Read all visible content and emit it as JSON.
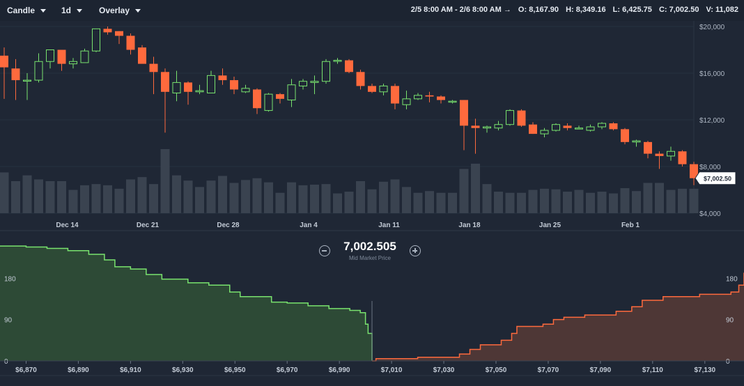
{
  "toolbar": {
    "chart_type": "Candle",
    "interval": "1d",
    "overlay": "Overlay",
    "range": "2/5 8:00 AM - 2/6 8:00 AM →",
    "open": "O: 8,167.90",
    "high": "H: 8,349.16",
    "low": "L: 6,425.75",
    "close": "C: 7,002.50",
    "volume": "V: 11,082"
  },
  "depth": {
    "mid_value": "7,002.505",
    "mid_label": "Mid Market Price",
    "zoom_out_icon": "minus-circle-icon",
    "zoom_in_icon": "plus-circle-icon"
  },
  "colors": {
    "up": "#79e36e",
    "down": "#ff6a3d",
    "volume": "#3a4350",
    "bid_fill": "#2d4a36",
    "ask_fill": "#4e3736"
  },
  "chart_data": [
    {
      "type": "candlestick",
      "y_axis": {
        "min": 4000,
        "max": 20000,
        "ticks": [
          4000,
          8000,
          12000,
          16000,
          20000
        ],
        "labels": [
          "$4,000",
          "$8,000",
          "$12,000",
          "$16,000",
          "$20,000"
        ]
      },
      "x_labels": [
        {
          "label": "Dec 14",
          "index": 5
        },
        {
          "label": "Dec 21",
          "index": 12
        },
        {
          "label": "Dec 28",
          "index": 19
        },
        {
          "label": "Jan 4",
          "index": 26
        },
        {
          "label": "Jan 11",
          "index": 33
        },
        {
          "label": "Jan 18",
          "index": 40
        },
        {
          "label": "Jan 25",
          "index": 47
        },
        {
          "label": "Feb 1",
          "index": 54
        }
      ],
      "last_price_label": "$7,002.50",
      "candles": [
        {
          "o": 17500,
          "h": 18200,
          "l": 13800,
          "c": 16500,
          "v": 7
        },
        {
          "o": 16400,
          "h": 17200,
          "l": 13700,
          "c": 15400,
          "v": 5.5
        },
        {
          "o": 15400,
          "h": 16000,
          "l": 13700,
          "c": 15400,
          "v": 6.5
        },
        {
          "o": 15400,
          "h": 17700,
          "l": 15200,
          "c": 17000,
          "v": 5.8
        },
        {
          "o": 17000,
          "h": 18000,
          "l": 16400,
          "c": 18000,
          "v": 5.5
        },
        {
          "o": 18000,
          "h": 18000,
          "l": 16200,
          "c": 16800,
          "v": 5.5
        },
        {
          "o": 16800,
          "h": 17300,
          "l": 16400,
          "c": 17000,
          "v": 4
        },
        {
          "o": 16900,
          "h": 18100,
          "l": 16900,
          "c": 17900,
          "v": 4.8
        },
        {
          "o": 17900,
          "h": 19800,
          "l": 17800,
          "c": 19800,
          "v": 5
        },
        {
          "o": 19800,
          "h": 20000,
          "l": 19300,
          "c": 19500,
          "v": 4.8
        },
        {
          "o": 19600,
          "h": 19600,
          "l": 18500,
          "c": 19200,
          "v": 4.2
        },
        {
          "o": 19200,
          "h": 19400,
          "l": 17600,
          "c": 18000,
          "v": 5.8
        },
        {
          "o": 18200,
          "h": 18400,
          "l": 16900,
          "c": 16800,
          "v": 6.2
        },
        {
          "o": 16800,
          "h": 17400,
          "l": 14200,
          "c": 16100,
          "v": 5
        },
        {
          "o": 16100,
          "h": 16400,
          "l": 10900,
          "c": 14400,
          "v": 11
        },
        {
          "o": 14300,
          "h": 16200,
          "l": 13600,
          "c": 15200,
          "v": 6.5
        },
        {
          "o": 15200,
          "h": 15300,
          "l": 13300,
          "c": 14400,
          "v": 5.6
        },
        {
          "o": 14400,
          "h": 15000,
          "l": 14200,
          "c": 14500,
          "v": 4.5
        },
        {
          "o": 14300,
          "h": 16200,
          "l": 14300,
          "c": 15800,
          "v": 5.6
        },
        {
          "o": 15800,
          "h": 16400,
          "l": 15000,
          "c": 15400,
          "v": 6.4
        },
        {
          "o": 15400,
          "h": 15700,
          "l": 14200,
          "c": 14600,
          "v": 5.2
        },
        {
          "o": 14400,
          "h": 15000,
          "l": 14300,
          "c": 14700,
          "v": 5.7
        },
        {
          "o": 14600,
          "h": 14700,
          "l": 12500,
          "c": 13000,
          "v": 6
        },
        {
          "o": 12800,
          "h": 14300,
          "l": 12700,
          "c": 14200,
          "v": 5.3
        },
        {
          "o": 14200,
          "h": 14300,
          "l": 13400,
          "c": 13800,
          "v": 3.5
        },
        {
          "o": 13700,
          "h": 15500,
          "l": 13100,
          "c": 15000,
          "v": 5.3
        },
        {
          "o": 14900,
          "h": 15500,
          "l": 14600,
          "c": 15300,
          "v": 4.8
        },
        {
          "o": 15200,
          "h": 15800,
          "l": 14200,
          "c": 15300,
          "v": 4.9
        },
        {
          "o": 15300,
          "h": 17200,
          "l": 15100,
          "c": 17000,
          "v": 5
        },
        {
          "o": 17100,
          "h": 17300,
          "l": 16800,
          "c": 17100,
          "v": 3.4
        },
        {
          "o": 17100,
          "h": 17200,
          "l": 16000,
          "c": 16100,
          "v": 3.7
        },
        {
          "o": 16100,
          "h": 16300,
          "l": 14600,
          "c": 14900,
          "v": 5.5
        },
        {
          "o": 14900,
          "h": 15100,
          "l": 14300,
          "c": 14400,
          "v": 4.1
        },
        {
          "o": 14400,
          "h": 15100,
          "l": 14100,
          "c": 14900,
          "v": 5.4
        },
        {
          "o": 14900,
          "h": 15100,
          "l": 12900,
          "c": 13400,
          "v": 5.8
        },
        {
          "o": 13300,
          "h": 14500,
          "l": 12900,
          "c": 13800,
          "v": 4.5
        },
        {
          "o": 13800,
          "h": 14300,
          "l": 13700,
          "c": 14100,
          "v": 3.5
        },
        {
          "o": 14100,
          "h": 14400,
          "l": 13500,
          "c": 14000,
          "v": 3.8
        },
        {
          "o": 14000,
          "h": 14100,
          "l": 13400,
          "c": 13700,
          "v": 3.5
        },
        {
          "o": 13600,
          "h": 13700,
          "l": 13400,
          "c": 13600,
          "v": 3.5
        },
        {
          "o": 13700,
          "h": 13700,
          "l": 9400,
          "c": 11500,
          "v": 7.6
        },
        {
          "o": 11500,
          "h": 12100,
          "l": 9100,
          "c": 11300,
          "v": 8.5
        },
        {
          "o": 11300,
          "h": 11500,
          "l": 10900,
          "c": 11400,
          "v": 5
        },
        {
          "o": 11300,
          "h": 11900,
          "l": 11100,
          "c": 11600,
          "v": 3.7
        },
        {
          "o": 11600,
          "h": 12900,
          "l": 11500,
          "c": 12800,
          "v": 3.5
        },
        {
          "o": 12800,
          "h": 12900,
          "l": 11400,
          "c": 11500,
          "v": 3.5
        },
        {
          "o": 11600,
          "h": 11800,
          "l": 10800,
          "c": 10800,
          "v": 4
        },
        {
          "o": 10800,
          "h": 11300,
          "l": 10500,
          "c": 11100,
          "v": 4.2
        },
        {
          "o": 11100,
          "h": 11700,
          "l": 11000,
          "c": 11600,
          "v": 4.1
        },
        {
          "o": 11500,
          "h": 11700,
          "l": 11100,
          "c": 11300,
          "v": 3.7
        },
        {
          "o": 11300,
          "h": 11500,
          "l": 11200,
          "c": 11300,
          "v": 4
        },
        {
          "o": 11100,
          "h": 11600,
          "l": 11000,
          "c": 11400,
          "v": 3.5
        },
        {
          "o": 11400,
          "h": 11800,
          "l": 11200,
          "c": 11700,
          "v": 3.7
        },
        {
          "o": 11700,
          "h": 11800,
          "l": 11100,
          "c": 11200,
          "v": 3.4
        },
        {
          "o": 11200,
          "h": 11300,
          "l": 9900,
          "c": 10100,
          "v": 4.3
        },
        {
          "o": 10100,
          "h": 10300,
          "l": 9700,
          "c": 10200,
          "v": 3.8
        },
        {
          "o": 10100,
          "h": 10200,
          "l": 8700,
          "c": 9100,
          "v": 5.2
        },
        {
          "o": 9100,
          "h": 9300,
          "l": 7800,
          "c": 8900,
          "v": 5.2
        },
        {
          "o": 8900,
          "h": 9700,
          "l": 8500,
          "c": 9300,
          "v": 4
        },
        {
          "o": 9300,
          "h": 9400,
          "l": 8000,
          "c": 8200,
          "v": 4.2
        },
        {
          "o": 8200,
          "h": 8400,
          "l": 6400,
          "c": 7000,
          "v": 4.2
        }
      ]
    },
    {
      "type": "area",
      "x_axis": {
        "min": 6860,
        "max": 7145,
        "ticks": [
          6870,
          6890,
          6910,
          6930,
          6950,
          6970,
          6990,
          7010,
          7030,
          7050,
          7070,
          7090,
          7110,
          7130
        ],
        "labels": [
          "$6,870",
          "$6,890",
          "$6,910",
          "$6,930",
          "$6,950",
          "$6,970",
          "$6,990",
          "$7,010",
          "$7,030",
          "$7,050",
          "$7,070",
          "$7,090",
          "$7,110",
          "$7,130"
        ]
      },
      "y_axis": {
        "min": 0,
        "max": 270,
        "ticks": [
          0,
          90,
          180
        ],
        "labels": [
          "0",
          "90",
          "180"
        ]
      },
      "series": [
        {
          "side": "bid",
          "points": [
            [
              6860,
              250
            ],
            [
              6870,
              248
            ],
            [
              6878,
              245
            ],
            [
              6886,
              240
            ],
            [
              6894,
              232
            ],
            [
              6900,
              220
            ],
            [
              6904,
              205
            ],
            [
              6910,
              200
            ],
            [
              6916,
              188
            ],
            [
              6922,
              178
            ],
            [
              6932,
              170
            ],
            [
              6940,
              165
            ],
            [
              6948,
              150
            ],
            [
              6952,
              140
            ],
            [
              6964,
              128
            ],
            [
              6970,
              126
            ],
            [
              6978,
              120
            ],
            [
              6986,
              114
            ],
            [
              6994,
              110
            ],
            [
              6998,
              105
            ],
            [
              7000,
              80
            ],
            [
              7001,
              60
            ],
            [
              7002.5,
              0
            ]
          ]
        },
        {
          "side": "ask",
          "points": [
            [
              7002.5,
              0
            ],
            [
              7004,
              5
            ],
            [
              7020,
              8
            ],
            [
              7036,
              15
            ],
            [
              7040,
              25
            ],
            [
              7044,
              35
            ],
            [
              7052,
              45
            ],
            [
              7056,
              60
            ],
            [
              7058,
              75
            ],
            [
              7068,
              80
            ],
            [
              7072,
              90
            ],
            [
              7076,
              95
            ],
            [
              7084,
              100
            ],
            [
              7096,
              108
            ],
            [
              7102,
              118
            ],
            [
              7106,
              132
            ],
            [
              7114,
              140
            ],
            [
              7128,
              145
            ],
            [
              7140,
              150
            ],
            [
              7143,
              165
            ],
            [
              7145,
              192
            ]
          ]
        }
      ]
    }
  ]
}
